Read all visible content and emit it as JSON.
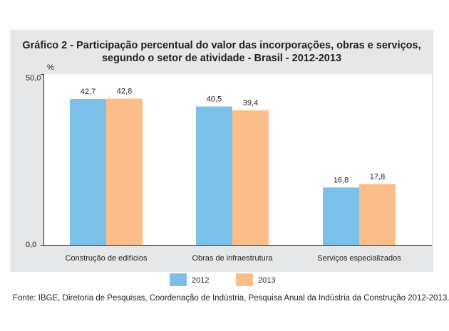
{
  "chart_data": {
    "type": "bar",
    "title_lines": [
      "Gráfico 2 - Participação percentual do valor das incorporações, obras e serviços,",
      "segundo o setor de atividade - Brasil - 2012-2013"
    ],
    "ylabel": "%",
    "ylim": [
      0,
      50
    ],
    "ytick_labels": [
      "50,0",
      "0,0"
    ],
    "categories": [
      "Construção de edifícios",
      "Obras de infraestrutura",
      "Serviços especializados"
    ],
    "series": [
      {
        "name": "2012",
        "color": "#7cc0e8",
        "values": [
          42.7,
          40.5,
          16.8
        ],
        "labels": [
          "42,7",
          "40,5",
          "16,8"
        ]
      },
      {
        "name": "2013",
        "color": "#fbbd8a",
        "values": [
          42.8,
          39.4,
          17.8
        ],
        "labels": [
          "42,8",
          "39,4",
          "17,8"
        ]
      }
    ],
    "legend": "bottom-center",
    "grid": false
  },
  "footnote": "Fonte: IBGE, Diretoria de Pesquisas, Coordenação de Indústria, Pesquisa Anual da Indústria da Construção 2012-2013."
}
